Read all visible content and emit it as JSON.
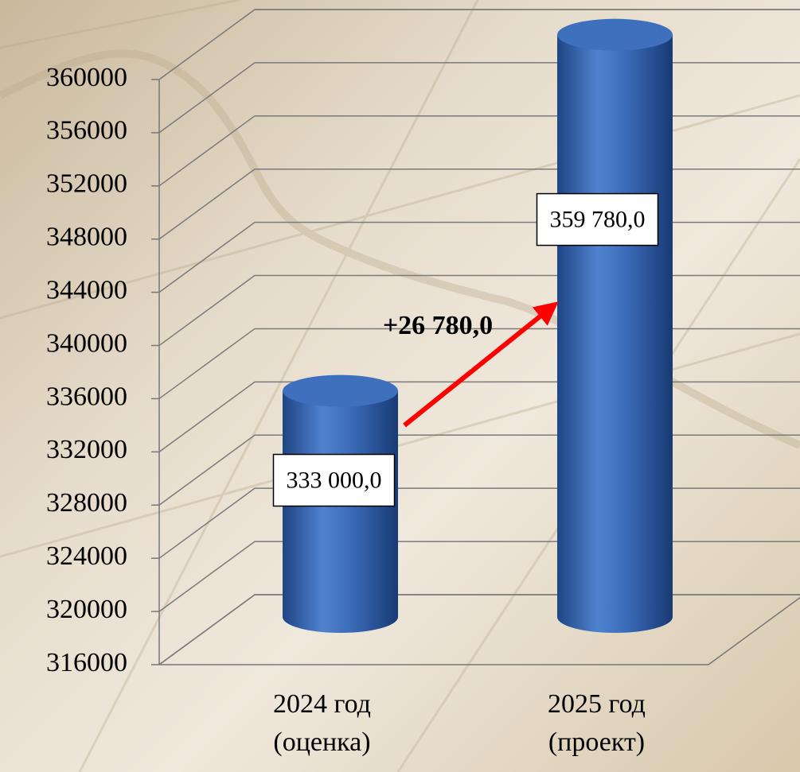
{
  "chart_data": {
    "type": "bar",
    "categories": [
      [
        "2024 год",
        "(оценка)"
      ],
      [
        "2025 год",
        "(проект)"
      ]
    ],
    "values": [
      333000,
      359780
    ],
    "value_labels": [
      "333 000,0",
      "359 780,0"
    ],
    "color": "#3566b0",
    "annotation": "+26 780,0",
    "ylim": [
      316000,
      360000
    ],
    "yticks": [
      316000,
      320000,
      324000,
      328000,
      332000,
      336000,
      340000,
      344000,
      348000,
      352000,
      356000,
      360000
    ],
    "grid": true
  }
}
